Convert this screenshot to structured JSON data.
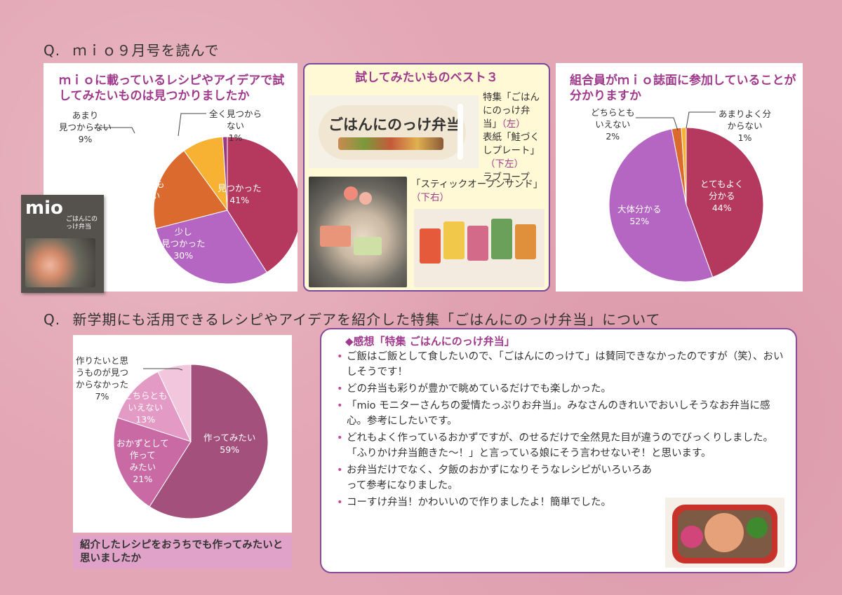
{
  "q1": {
    "label": "Q.",
    "text": "ｍｉｏ９月号を読んで"
  },
  "q2": {
    "label": "Q.",
    "text": "新学期にも活用できるレシピやアイデアを紹介した特集「ごはんにのっけ弁当」について"
  },
  "cover": {
    "logo": "mio",
    "headline": "ごはんにのっけ弁当"
  },
  "chart_data": [
    {
      "type": "pie",
      "title": "ｍｉｏに載っているレシピやアイデアで試してみたいものは見つかりましたか",
      "categories": [
        "見つかった",
        "少し見つかった",
        "どちらともいえない",
        "あまり見つからない",
        "全く見つからない"
      ],
      "values": [
        41,
        30,
        19,
        9,
        1
      ],
      "label_lines": [
        [
          "見つかった"
        ],
        [
          "少し",
          "見つかった"
        ],
        [
          "どちらとも",
          "いえない"
        ],
        [
          "あまり",
          "見つからない"
        ],
        [
          "全く見つから",
          "ない"
        ]
      ],
      "percent_labels": [
        "41%",
        "30%",
        "19%",
        "9%",
        "1%"
      ],
      "colors": [
        "#b5395f",
        "#b466c2",
        "#db6a2f",
        "#f7b133",
        "#9a3a86"
      ]
    },
    {
      "type": "pie",
      "title": "組合員がｍｉｏ誌面に参加していることが分かりますか",
      "categories": [
        "とてもよく分かる",
        "大体分かる",
        "どちらともいえない",
        "あまりよく分からない"
      ],
      "values": [
        44,
        52,
        2,
        1
      ],
      "label_lines": [
        [
          "とてもよく",
          "分かる"
        ],
        [
          "大体分かる"
        ],
        [
          "どちらとも",
          "いえない"
        ],
        [
          "あまりよく分",
          "からない"
        ]
      ],
      "percent_labels": [
        "44%",
        "52%",
        "2%",
        "1%"
      ],
      "colors": [
        "#b5395f",
        "#b466c2",
        "#db6a2f",
        "#f7b133"
      ]
    },
    {
      "type": "pie",
      "title": "紹介したレシピをおうちでも作ってみたいと思いましたか",
      "categories": [
        "作ってみたい",
        "おかずとして作ってみたい",
        "どちらともいえない",
        "作りたいと思うものが見つからなかった"
      ],
      "values": [
        59,
        21,
        13,
        7
      ],
      "label_lines": [
        [
          "作ってみたい"
        ],
        [
          "おかずとして",
          "作って",
          "みたい"
        ],
        [
          "どちらとも",
          "いえない"
        ],
        [
          "作りたいと思",
          "うものが見つ",
          "からなかった"
        ]
      ],
      "percent_labels": [
        "59%",
        "21%",
        "13%",
        "7%"
      ],
      "colors": [
        "#a3507c",
        "#c96aa5",
        "#e39ac5",
        "#f2c6dc"
      ]
    }
  ],
  "best3": {
    "title": "試してみたいものベスト３",
    "booklet_title": "ごはんにのっけ弁当",
    "cap1_lines": [
      "特集「ごはん",
      "にのっけ弁",
      "当」",
      "表紙「鮭づく",
      "しプレート」",
      "ラブコープ"
    ],
    "cap1_left": "（左）",
    "cap1_bottomleft": "（下左）",
    "cap2_line": "「スティックオープンサンド」",
    "cap2_pos": "（下右）"
  },
  "comments": {
    "title": "◆感想「特集 ごはんにのっけ弁当」",
    "items": [
      "ご飯はご飯として食したいので、「ごはんにのっけて」は賛同できなかったのですが（笑）、おいしそうです！",
      "どの弁当も彩りが豊かで眺めているだけでも楽しかった。",
      "「mio モニターさんちの愛情たっぷりお弁当」。みなさんのきれいでおいしそうなお弁当に感心。参考にしたいです。",
      "どれもよく作っているおかずですが、のせるだけで全然見た目が違うのでびっくりしました。「ふりかけ弁当飽きた〜！」と言っている娘にそう言わせないぞ！と思います。",
      "お弁当だけでなく、夕飯のおかずになりそうなレシピがいろいろあって参考になりました。",
      "コーすけ弁当！かわいいので作りましたよ！簡単でした。"
    ]
  }
}
